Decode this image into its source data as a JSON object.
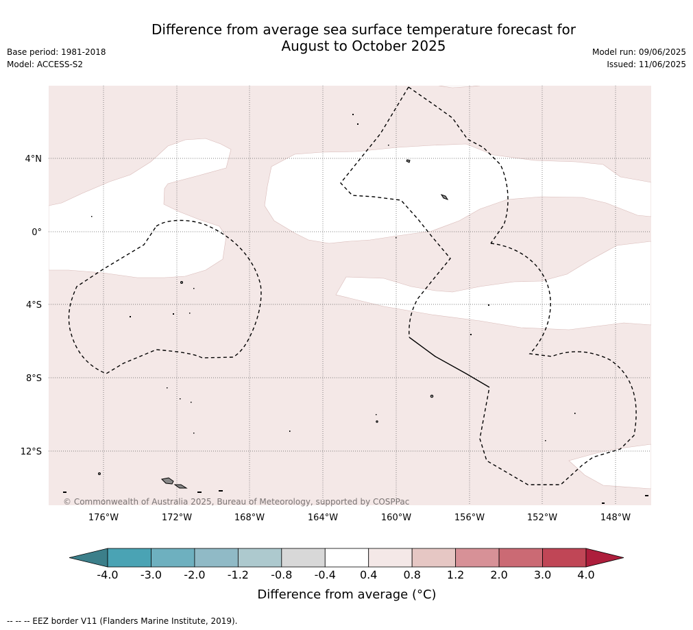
{
  "header": {
    "title_line1": "Difference from average sea surface temperature forecast for",
    "title_line2": "August to October 2025",
    "base_period": "Base period: 1981-2018",
    "model": "Model: ACCESS-S2",
    "model_run": "Model run: 09/06/2025",
    "issued": "Issued: 11/06/2025"
  },
  "map": {
    "lat_labels": [
      "4°N",
      "0°",
      "4°S",
      "8°S",
      "12°S"
    ],
    "lon_labels": [
      "176°W",
      "172°W",
      "168°W",
      "164°W",
      "160°W",
      "156°W",
      "152°W",
      "148°W"
    ],
    "copyright": "© Commonwealth of Australia 2025, Bureau of Meteorology, supported by COSPPac",
    "shading_colors": {
      "band_0_4_to_0_8": "#f4e8e7",
      "band_neg0_4_to_0_4": "#ffffff"
    }
  },
  "colorbar": {
    "ticks": [
      "-4.0",
      "-3.0",
      "-2.0",
      "-1.2",
      "-0.8",
      "-0.4",
      "0.4",
      "0.8",
      "1.2",
      "2.0",
      "3.0",
      "4.0"
    ],
    "colors": [
      "#3c7f8a",
      "#4aa3b4",
      "#6eb0bf",
      "#90bac6",
      "#adc9ce",
      "#d8d8d8",
      "#ffffff",
      "#f4e8e7",
      "#e6c7c4",
      "#d79197",
      "#cb6a74",
      "#c04656",
      "#ad1e3c"
    ],
    "label": "Difference from average (°C)"
  },
  "footer": {
    "eez_note": "--  --  -- EEZ border V11 (Flanders Marine Institute, 2019)."
  }
}
